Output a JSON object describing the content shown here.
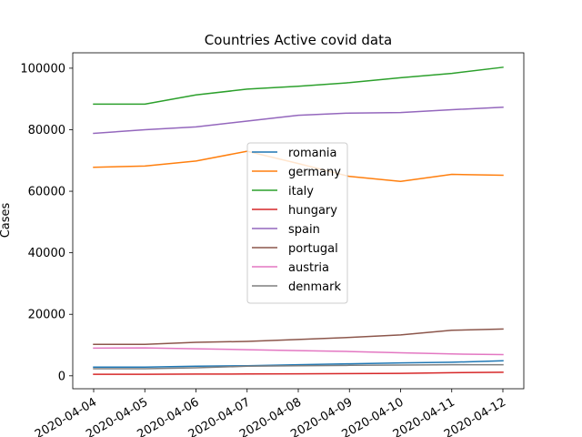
{
  "chart_data": {
    "type": "line",
    "title": "Countries Active covid data",
    "xlabel": "",
    "ylabel": "Cases",
    "x": [
      "2020-04-04",
      "2020-04-05",
      "2020-04-06",
      "2020-04-07",
      "2020-04-08",
      "2020-04-09",
      "2020-04-10",
      "2020-04-11",
      "2020-04-12"
    ],
    "y_ticks": [
      0,
      20000,
      40000,
      60000,
      80000,
      100000
    ],
    "ylim": [
      -4200,
      105000
    ],
    "grid": false,
    "legend_position": "center",
    "series": [
      {
        "name": "romania",
        "color": "#1f77b4",
        "values": [
          2800,
          2800,
          3100,
          3300,
          3600,
          3900,
          4200,
          4400,
          4900
        ]
      },
      {
        "name": "germany",
        "color": "#ff7f0e",
        "values": [
          67800,
          68200,
          69800,
          73000,
          69000,
          64800,
          63200,
          65500,
          65200
        ]
      },
      {
        "name": "italy",
        "color": "#2ca02c",
        "values": [
          88300,
          88300,
          91300,
          93200,
          94100,
          95300,
          96900,
          98300,
          100300
        ]
      },
      {
        "name": "hungary",
        "color": "#d62728",
        "values": [
          500,
          500,
          550,
          600,
          650,
          700,
          800,
          1000,
          1150
        ]
      },
      {
        "name": "spain",
        "color": "#9467bd",
        "values": [
          78800,
          80000,
          80900,
          82800,
          84700,
          85400,
          85600,
          86500,
          87300
        ]
      },
      {
        "name": "portugal",
        "color": "#8c564b",
        "values": [
          10200,
          10200,
          10900,
          11200,
          11800,
          12500,
          13300,
          14800,
          15200
        ]
      },
      {
        "name": "austria",
        "color": "#e377c2",
        "values": [
          9000,
          9100,
          8800,
          8500,
          8200,
          7900,
          7500,
          7100,
          6900
        ]
      },
      {
        "name": "denmark",
        "color": "#7f7f7f",
        "values": [
          2300,
          2300,
          2600,
          3100,
          3300,
          3400,
          3500,
          3600,
          3600
        ]
      }
    ]
  }
}
